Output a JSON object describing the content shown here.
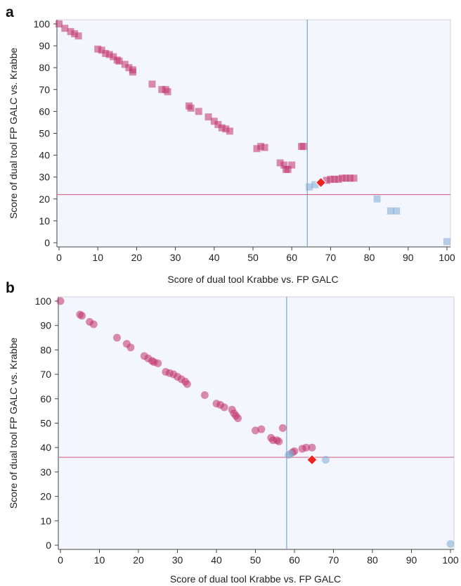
{
  "colors": {
    "plot_bg": "#f4f6fd",
    "magenta": "#c1326e",
    "blue": "#7fa9d3",
    "marker_red": "#ee2222",
    "threshold_h": "#d46a8c",
    "threshold_v": "#7aa6cf"
  },
  "chart_data": [
    {
      "panel": "a",
      "type": "scatter",
      "marker": "square",
      "xlabel": "Score of dual tool Krabbe vs. FP GALC",
      "ylabel": "Score of dual tool FP GALC vs. Krabbe",
      "xlim": [
        0,
        100
      ],
      "ylim": [
        0,
        100
      ],
      "xticks": [
        0,
        10,
        20,
        30,
        40,
        50,
        60,
        70,
        80,
        90,
        100
      ],
      "yticks": [
        0,
        10,
        20,
        30,
        40,
        50,
        60,
        70,
        80,
        90,
        100
      ],
      "grid": false,
      "threshold_x": 64,
      "threshold_y": 22,
      "series": [
        {
          "color": "magenta",
          "points": [
            [
              0,
              100
            ],
            [
              1.5,
              98
            ],
            [
              3,
              96.5
            ],
            [
              4,
              95.5
            ],
            [
              5,
              94.5
            ],
            [
              10,
              88.5
            ],
            [
              11,
              88
            ],
            [
              12,
              86.5
            ],
            [
              13,
              86
            ],
            [
              14,
              85
            ],
            [
              15,
              83.5
            ],
            [
              15.5,
              83
            ],
            [
              17,
              81.5
            ],
            [
              18,
              80
            ],
            [
              19,
              79
            ],
            [
              19,
              78
            ],
            [
              24,
              72.5
            ],
            [
              26.5,
              70
            ],
            [
              27.5,
              70
            ],
            [
              28,
              69
            ],
            [
              33.5,
              62.5
            ],
            [
              34,
              61.5
            ],
            [
              36,
              60
            ],
            [
              38.5,
              57.5
            ],
            [
              40,
              55.5
            ],
            [
              41,
              54
            ],
            [
              42,
              52.5
            ],
            [
              43,
              52
            ],
            [
              44,
              51
            ],
            [
              51,
              43
            ],
            [
              52,
              44
            ],
            [
              53,
              43.5
            ],
            [
              57,
              36.5
            ],
            [
              58,
              35.5
            ],
            [
              58.5,
              33.5
            ],
            [
              59,
              33.5
            ],
            [
              60,
              35.5
            ],
            [
              62.5,
              44
            ],
            [
              63,
              44
            ],
            [
              69,
              28.5
            ],
            [
              70,
              29
            ],
            [
              71,
              29
            ],
            [
              72,
              29
            ],
            [
              73,
              29.5
            ],
            [
              74,
              29.5
            ],
            [
              75,
              29.5
            ],
            [
              76,
              29.5
            ]
          ]
        },
        {
          "color": "blue",
          "points": [
            [
              64.5,
              25.5
            ],
            [
              66,
              26.5
            ],
            [
              82,
              20
            ],
            [
              85.5,
              14.5
            ],
            [
              87,
              14.5
            ],
            [
              100,
              0.5
            ]
          ]
        },
        {
          "color": "marker_red",
          "marker": "diamond",
          "points": [
            [
              67.5,
              27.5
            ]
          ]
        }
      ]
    },
    {
      "panel": "b",
      "type": "scatter",
      "marker": "circle",
      "xlabel": "Score of dual tool Krabbe vs. FP GALC",
      "ylabel": "Score of dual tool FP GALC vs. Krabbe",
      "xlim": [
        0,
        100
      ],
      "ylim": [
        0,
        100
      ],
      "xticks": [
        0,
        10,
        20,
        30,
        40,
        50,
        60,
        70,
        80,
        90,
        100
      ],
      "yticks": [
        0,
        10,
        20,
        30,
        40,
        50,
        60,
        70,
        80,
        90,
        100
      ],
      "grid": false,
      "threshold_x": 58,
      "threshold_y": 36,
      "series": [
        {
          "color": "magenta",
          "points": [
            [
              0,
              100
            ],
            [
              5,
              94.5
            ],
            [
              5.5,
              94
            ],
            [
              7.5,
              91.5
            ],
            [
              8.5,
              90.5
            ],
            [
              14.5,
              85
            ],
            [
              17,
              82.5
            ],
            [
              18,
              81
            ],
            [
              21.5,
              77.5
            ],
            [
              22.5,
              76.5
            ],
            [
              23.5,
              75.5
            ],
            [
              24,
              75
            ],
            [
              25,
              74.5
            ],
            [
              27,
              71
            ],
            [
              28,
              70.5
            ],
            [
              29,
              70
            ],
            [
              30,
              69
            ],
            [
              31,
              68
            ],
            [
              32,
              67
            ],
            [
              32.5,
              66
            ],
            [
              37,
              61.5
            ],
            [
              40,
              58
            ],
            [
              41,
              57.5
            ],
            [
              42,
              56.5
            ],
            [
              44,
              55.5
            ],
            [
              44.5,
              54
            ],
            [
              45,
              53
            ],
            [
              45.5,
              52
            ],
            [
              50,
              47
            ],
            [
              51.5,
              47.5
            ],
            [
              54,
              44
            ],
            [
              54.5,
              43
            ],
            [
              55.5,
              43
            ],
            [
              56,
              42.5
            ],
            [
              57,
              48
            ],
            [
              59.5,
              38
            ],
            [
              60,
              38.5
            ],
            [
              62,
              39.5
            ],
            [
              63,
              40
            ],
            [
              64.5,
              40
            ]
          ]
        },
        {
          "color": "blue",
          "points": [
            [
              58.5,
              37
            ],
            [
              59,
              37.5
            ],
            [
              68,
              35
            ],
            [
              100,
              0.5
            ]
          ]
        },
        {
          "color": "marker_red",
          "marker": "diamond",
          "points": [
            [
              64.5,
              35
            ]
          ]
        }
      ]
    }
  ]
}
